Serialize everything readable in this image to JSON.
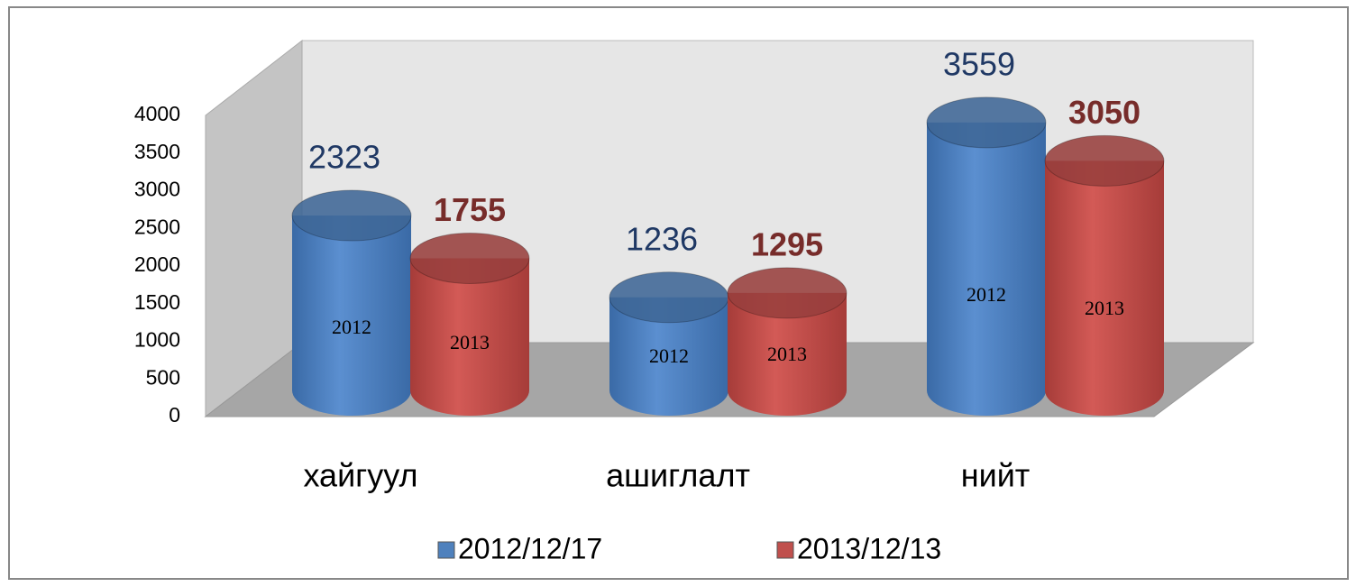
{
  "chart_data": {
    "type": "bar",
    "categories": [
      "хайгуул",
      "ашиглалт",
      "нийт"
    ],
    "series": [
      {
        "name": "2012/12/17",
        "color": "#4f81bd",
        "label_color": "#1f3864",
        "bar_text": "2012",
        "values": [
          2323,
          1236,
          3559
        ]
      },
      {
        "name": "2013/12/13",
        "color": "#c0504d",
        "label_color": "#772c2a",
        "bar_text": "2013",
        "values": [
          1755,
          1295,
          3050
        ]
      }
    ],
    "ylim": [
      0,
      4000
    ],
    "yticks": [
      0,
      500,
      1000,
      1500,
      2000,
      2500,
      3000,
      3500,
      4000
    ],
    "grid": false,
    "legend": "bottom"
  }
}
